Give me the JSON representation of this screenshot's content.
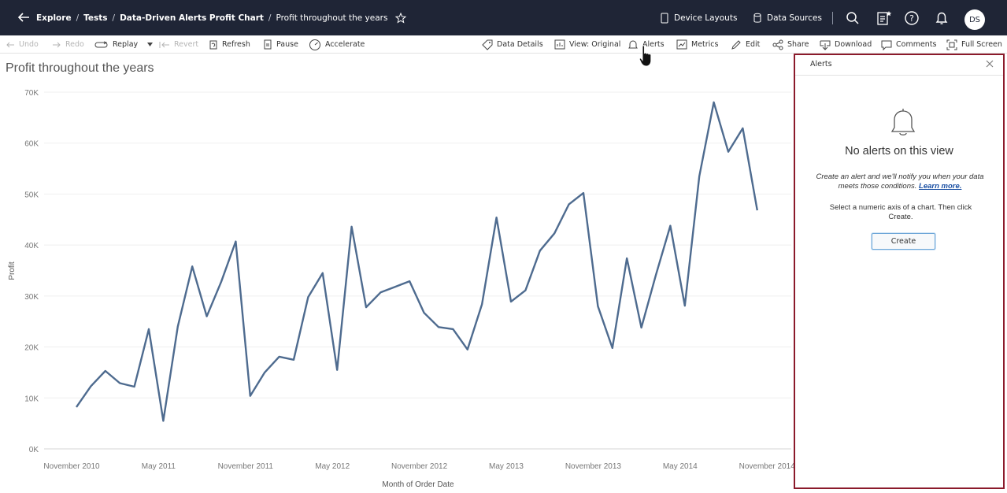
{
  "header": {
    "breadcrumbs": [
      {
        "label": "Explore",
        "bold": true
      },
      {
        "label": "Tests",
        "bold": true
      },
      {
        "label": "Data-Driven Alerts Profit Chart",
        "bold": true
      },
      {
        "label": "Profit throughout the years",
        "bold": false
      }
    ],
    "device_layouts_label": "Device Layouts",
    "data_sources_label": "Data Sources",
    "avatar_initials": "DS"
  },
  "toolbar": {
    "undo": "Undo",
    "redo": "Redo",
    "replay": "Replay",
    "revert": "Revert",
    "refresh": "Refresh",
    "pause": "Pause",
    "accelerate": "Accelerate",
    "data_details": "Data Details",
    "view_original": "View: Original",
    "alerts": "Alerts",
    "metrics": "Metrics",
    "edit": "Edit",
    "share": "Share",
    "download": "Download",
    "comments": "Comments",
    "full_screen": "Full Screen"
  },
  "chart_data": {
    "type": "line",
    "title": "Profit throughout the years",
    "xlabel": "Month of Order Date",
    "ylabel": "Profit",
    "ylim": [
      0,
      70000
    ],
    "yticks": [
      "0K",
      "10K",
      "20K",
      "30K",
      "40K",
      "50K",
      "60K",
      "70K"
    ],
    "xtick_labels": [
      {
        "label": "November 2010",
        "index": 0
      },
      {
        "label": "May 2011",
        "index": 6
      },
      {
        "label": "November 2011",
        "index": 12
      },
      {
        "label": "May 2012",
        "index": 18
      },
      {
        "label": "November 2012",
        "index": 24
      },
      {
        "label": "May 2013",
        "index": 30
      },
      {
        "label": "November 2013",
        "index": 36
      },
      {
        "label": "May 2014",
        "index": 42
      },
      {
        "label": "November 2014",
        "index": 48
      }
    ],
    "color": "#4e6b8f",
    "series": [
      {
        "values": [
          8200,
          12300,
          15300,
          12900,
          12200,
          23500,
          5500,
          24000,
          35800,
          26000,
          32800,
          40700,
          10400,
          15000,
          18100,
          17500,
          29800,
          34500,
          15500,
          43600,
          27800,
          30700,
          31800,
          32900,
          26700,
          23900,
          23500,
          19500,
          28400,
          45400,
          28900,
          31100,
          38900,
          42300,
          48000,
          50200,
          28000,
          19800,
          37400,
          23800,
          34100,
          43800,
          28100,
          53500,
          68000,
          58300,
          62900,
          46800
        ]
      }
    ]
  },
  "alerts_panel": {
    "title": "Alerts",
    "heading": "No alerts on this view",
    "description": "Create an alert and we'll notify you when your data meets those conditions.",
    "learn_more": "Learn more.",
    "instruction": "Select a numeric axis of a chart. Then click Create.",
    "create_button": "Create"
  }
}
